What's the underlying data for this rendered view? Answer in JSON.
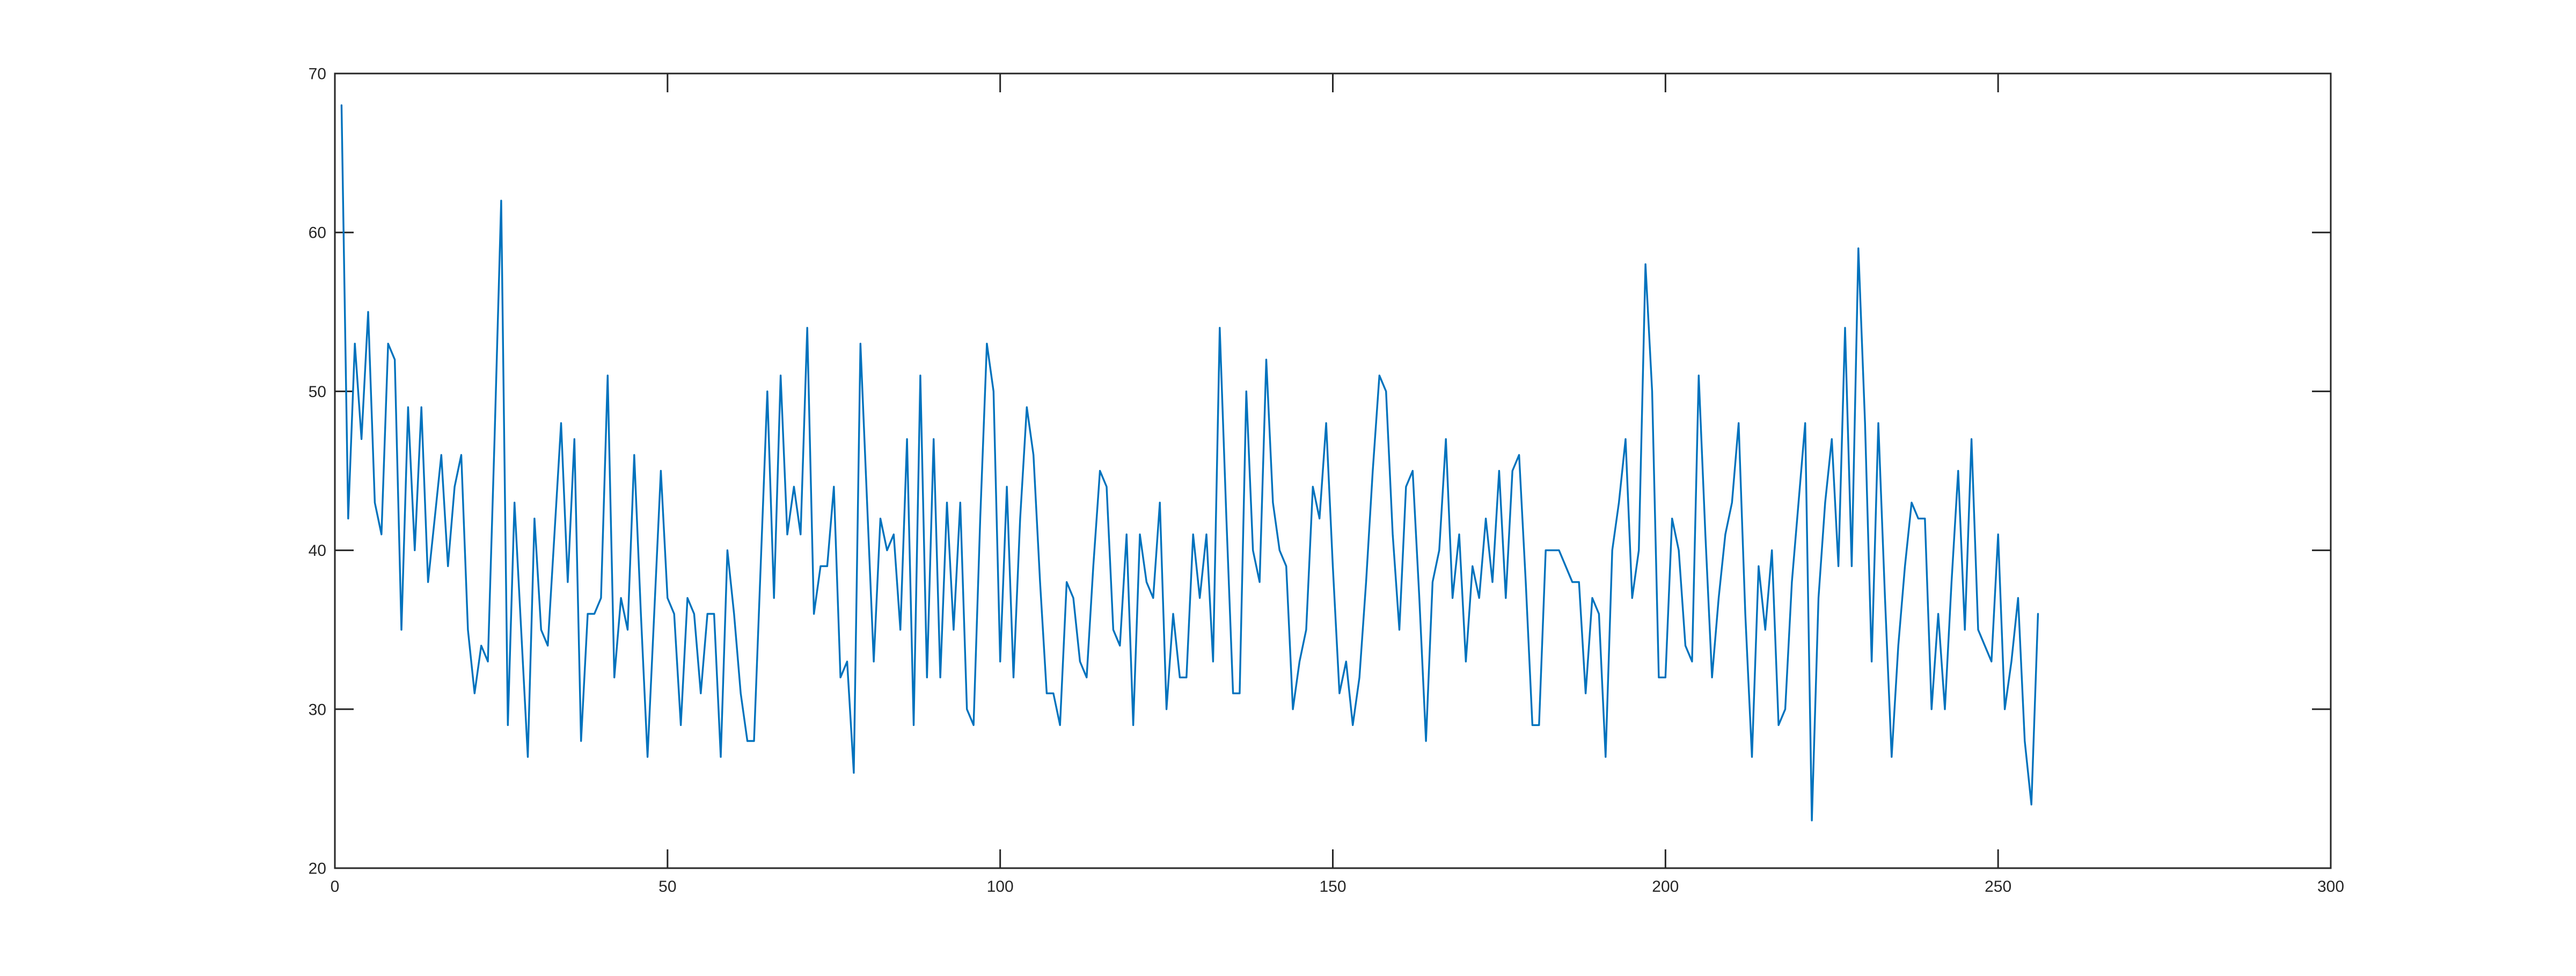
{
  "figure": {
    "background_color": "#ffffff"
  },
  "chart_data": {
    "type": "line",
    "title": "",
    "xlabel": "",
    "ylabel": "",
    "legend": null,
    "grid": false,
    "box": true,
    "tick_direction": "in",
    "xlim": [
      0,
      300
    ],
    "ylim": [
      20,
      70
    ],
    "xticks": [
      0,
      50,
      100,
      150,
      200,
      250,
      300
    ],
    "yticks": [
      20,
      30,
      40,
      50,
      60,
      70
    ],
    "xtick_labels": [
      "0",
      "50",
      "100",
      "150",
      "200",
      "250",
      "300"
    ],
    "ytick_labels": [
      "20",
      "30",
      "40",
      "50",
      "60",
      "70"
    ],
    "line_color": "#0072BD",
    "axis_color": "#262626",
    "label_color": "#262626",
    "background_color": "#ffffff",
    "x_start": 1,
    "x_step": 1,
    "values": [
      68,
      42,
      53,
      47,
      55,
      43,
      41,
      53,
      52,
      35,
      49,
      40,
      49,
      38,
      42,
      46,
      39,
      44,
      46,
      35,
      31,
      34,
      33,
      47,
      62,
      29,
      43,
      35,
      27,
      42,
      35,
      34,
      41,
      48,
      38,
      47,
      28,
      36,
      36,
      37,
      51,
      32,
      37,
      35,
      46,
      36,
      27,
      36,
      45,
      37,
      36,
      29,
      37,
      36,
      31,
      36,
      36,
      27,
      40,
      36,
      31,
      28,
      28,
      39,
      50,
      37,
      51,
      41,
      44,
      41,
      54,
      36,
      39,
      39,
      44,
      32,
      33,
      26,
      53,
      43,
      33,
      42,
      40,
      41,
      35,
      47,
      29,
      51,
      32,
      47,
      32,
      43,
      35,
      43,
      30,
      29,
      42,
      53,
      50,
      33,
      44,
      32,
      42,
      49,
      46,
      38,
      31,
      31,
      29,
      38,
      37,
      33,
      32,
      39,
      45,
      44,
      35,
      34,
      41,
      29,
      41,
      38,
      37,
      43,
      30,
      36,
      32,
      32,
      41,
      37,
      41,
      33,
      54,
      42,
      31,
      31,
      50,
      40,
      38,
      52,
      43,
      40,
      39,
      30,
      33,
      35,
      44,
      42,
      48,
      39,
      31,
      33,
      29,
      32,
      38,
      45,
      51,
      50,
      41,
      35,
      44,
      45,
      37,
      28,
      38,
      40,
      47,
      37,
      41,
      33,
      39,
      37,
      42,
      38,
      45,
      37,
      45,
      46,
      38,
      29,
      29,
      40,
      40,
      40,
      39,
      38,
      38,
      31,
      37,
      36,
      27,
      40,
      43,
      47,
      37,
      40,
      58,
      50,
      32,
      32,
      42,
      40,
      34,
      33,
      51,
      41,
      32,
      37,
      41,
      43,
      48,
      36,
      27,
      39,
      35,
      40,
      29,
      30,
      38,
      43,
      48,
      23,
      37,
      43,
      47,
      39,
      54,
      39,
      59,
      48,
      33,
      48,
      37,
      27,
      34,
      39,
      43,
      42,
      42,
      30,
      36,
      30,
      38,
      45,
      35,
      47,
      35,
      34,
      33,
      41,
      30,
      33,
      37,
      28,
      24,
      36
    ]
  }
}
